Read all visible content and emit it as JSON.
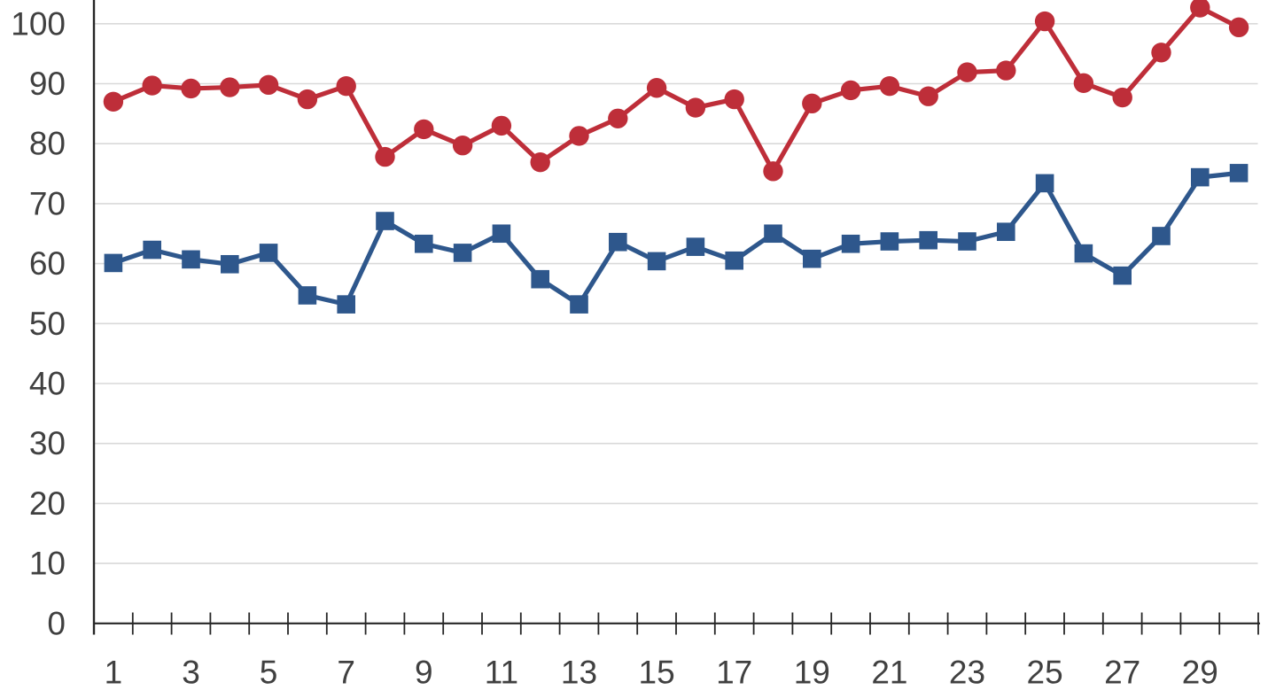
{
  "chart_data": {
    "type": "line",
    "title": "",
    "xlabel": "",
    "ylabel": "",
    "x": [
      1,
      2,
      3,
      4,
      5,
      6,
      7,
      8,
      9,
      10,
      11,
      12,
      13,
      14,
      15,
      16,
      17,
      18,
      19,
      20,
      21,
      22,
      23,
      24,
      25,
      26,
      27,
      28,
      29,
      30
    ],
    "x_tick_labels_shown": [
      "1",
      "3",
      "5",
      "7",
      "9",
      "11",
      "13",
      "15",
      "17",
      "19",
      "21",
      "23",
      "25",
      "27",
      "29"
    ],
    "y_ticks": [
      0,
      10,
      20,
      30,
      40,
      50,
      60,
      70,
      80,
      90,
      100
    ],
    "ylim": [
      0,
      104
    ],
    "grid": "horizontal",
    "legend": "none",
    "series": [
      {
        "name": "red-circle-series",
        "marker": "circle",
        "color": "#BE2E39",
        "values": [
          87.0,
          89.7,
          89.2,
          89.4,
          89.8,
          87.4,
          89.6,
          77.8,
          82.4,
          79.7,
          83.0,
          76.9,
          81.3,
          84.2,
          89.3,
          86.0,
          87.4,
          75.4,
          86.7,
          88.9,
          89.6,
          87.9,
          91.9,
          92.2,
          100.4,
          90.1,
          87.7,
          95.2,
          102.7,
          99.4
        ]
      },
      {
        "name": "blue-square-series",
        "marker": "square",
        "color": "#2E578C",
        "values": [
          60.1,
          62.3,
          60.7,
          59.9,
          61.8,
          54.7,
          53.2,
          67.1,
          63.3,
          61.8,
          65.0,
          57.4,
          53.2,
          63.6,
          60.4,
          62.8,
          60.5,
          65.0,
          60.8,
          63.3,
          63.7,
          63.9,
          63.7,
          65.3,
          73.4,
          61.7,
          58.0,
          64.6,
          74.4,
          75.1
        ]
      }
    ],
    "colors": {
      "grid": "#D9D9D9",
      "axis": "#262626",
      "tick_label": "#404040",
      "background": "#FFFFFF"
    }
  }
}
